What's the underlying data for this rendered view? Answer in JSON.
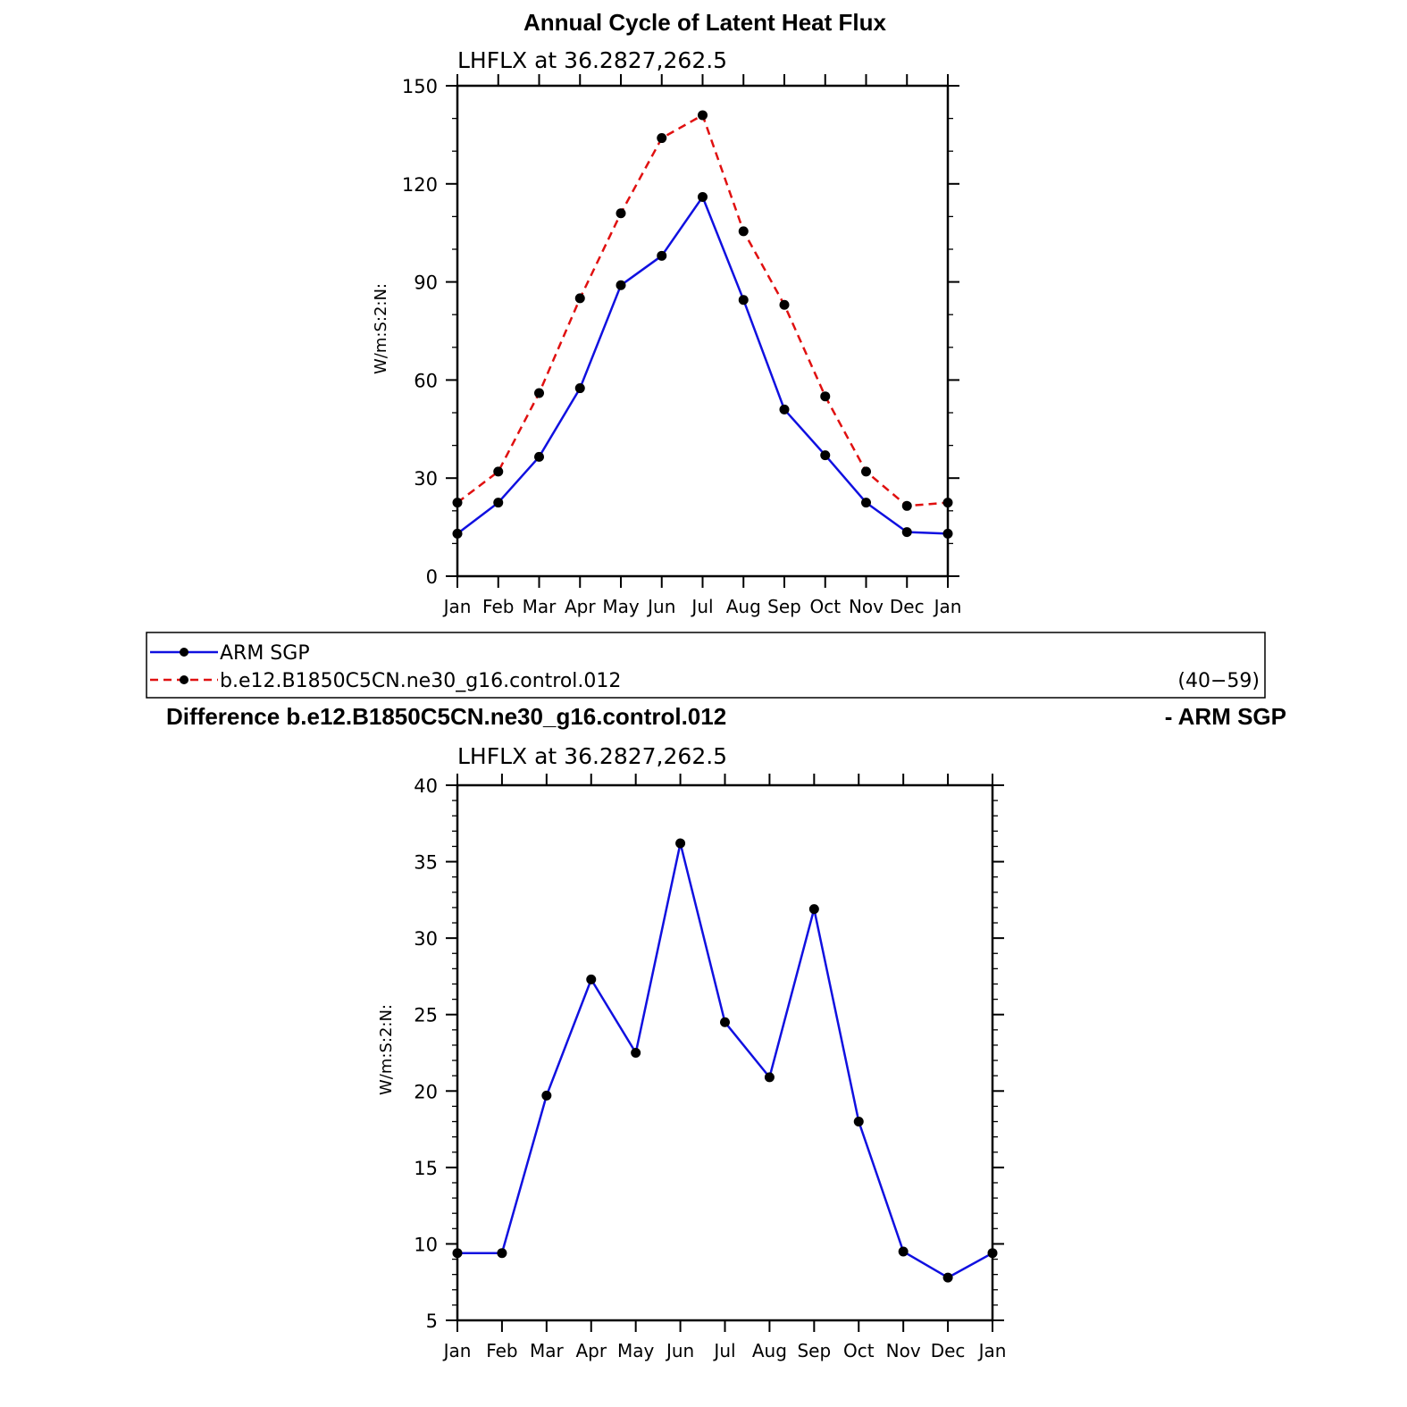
{
  "figure_title": "Annual Cycle of Latent Heat Flux",
  "legend": {
    "entries": [
      {
        "label": "ARM SGP",
        "color": "#1010e0",
        "dash": "solid"
      },
      {
        "label": "b.e12.B1850C5CN.ne30_g16.control.012",
        "color": "#e01010",
        "dash": "dashed"
      }
    ],
    "years": "(40−59)"
  },
  "difference_title": {
    "left": "Difference b.e12.B1850C5CN.ne30_g16.control.012",
    "right": "- ARM SGP"
  },
  "chart_data": [
    {
      "type": "line",
      "title": "LHFLX at 36.2827,262.5",
      "ylabel": "W/m:S:2:N:",
      "categories": [
        "Jan",
        "Feb",
        "Mar",
        "Apr",
        "May",
        "Jun",
        "Jul",
        "Aug",
        "Sep",
        "Oct",
        "Nov",
        "Dec",
        "Jan"
      ],
      "ylim": [
        0,
        150
      ],
      "yticks": [
        0,
        30,
        60,
        90,
        120,
        150
      ],
      "yminor_step": 10,
      "series": [
        {
          "name": "ARM SGP",
          "color": "#1010e0",
          "dash": "solid",
          "values": [
            13,
            22.5,
            36.5,
            57.5,
            89,
            98,
            116,
            84.5,
            51,
            37,
            22.5,
            13.5,
            13
          ]
        },
        {
          "name": "b.e12.B1850C5CN.ne30_g16.control.012",
          "color": "#e01010",
          "dash": "dashed",
          "values": [
            22.5,
            32,
            56,
            85,
            111,
            134,
            141,
            105.5,
            83,
            55,
            32,
            21.5,
            22.5
          ]
        }
      ]
    },
    {
      "type": "line",
      "title": "LHFLX at 36.2827,262.5",
      "ylabel": "W/m:S:2:N:",
      "categories": [
        "Jan",
        "Feb",
        "Mar",
        "Apr",
        "May",
        "Jun",
        "Jul",
        "Aug",
        "Sep",
        "Oct",
        "Nov",
        "Dec",
        "Jan"
      ],
      "ylim": [
        5,
        40
      ],
      "yticks": [
        5,
        10,
        15,
        20,
        25,
        30,
        35,
        40
      ],
      "yminor_step": 1,
      "series": [
        {
          "color": "#1010e0",
          "dash": "solid",
          "values": [
            9.4,
            9.4,
            19.7,
            27.3,
            22.5,
            36.2,
            24.5,
            20.9,
            31.9,
            18,
            9.5,
            7.8,
            9.4
          ]
        }
      ]
    }
  ]
}
